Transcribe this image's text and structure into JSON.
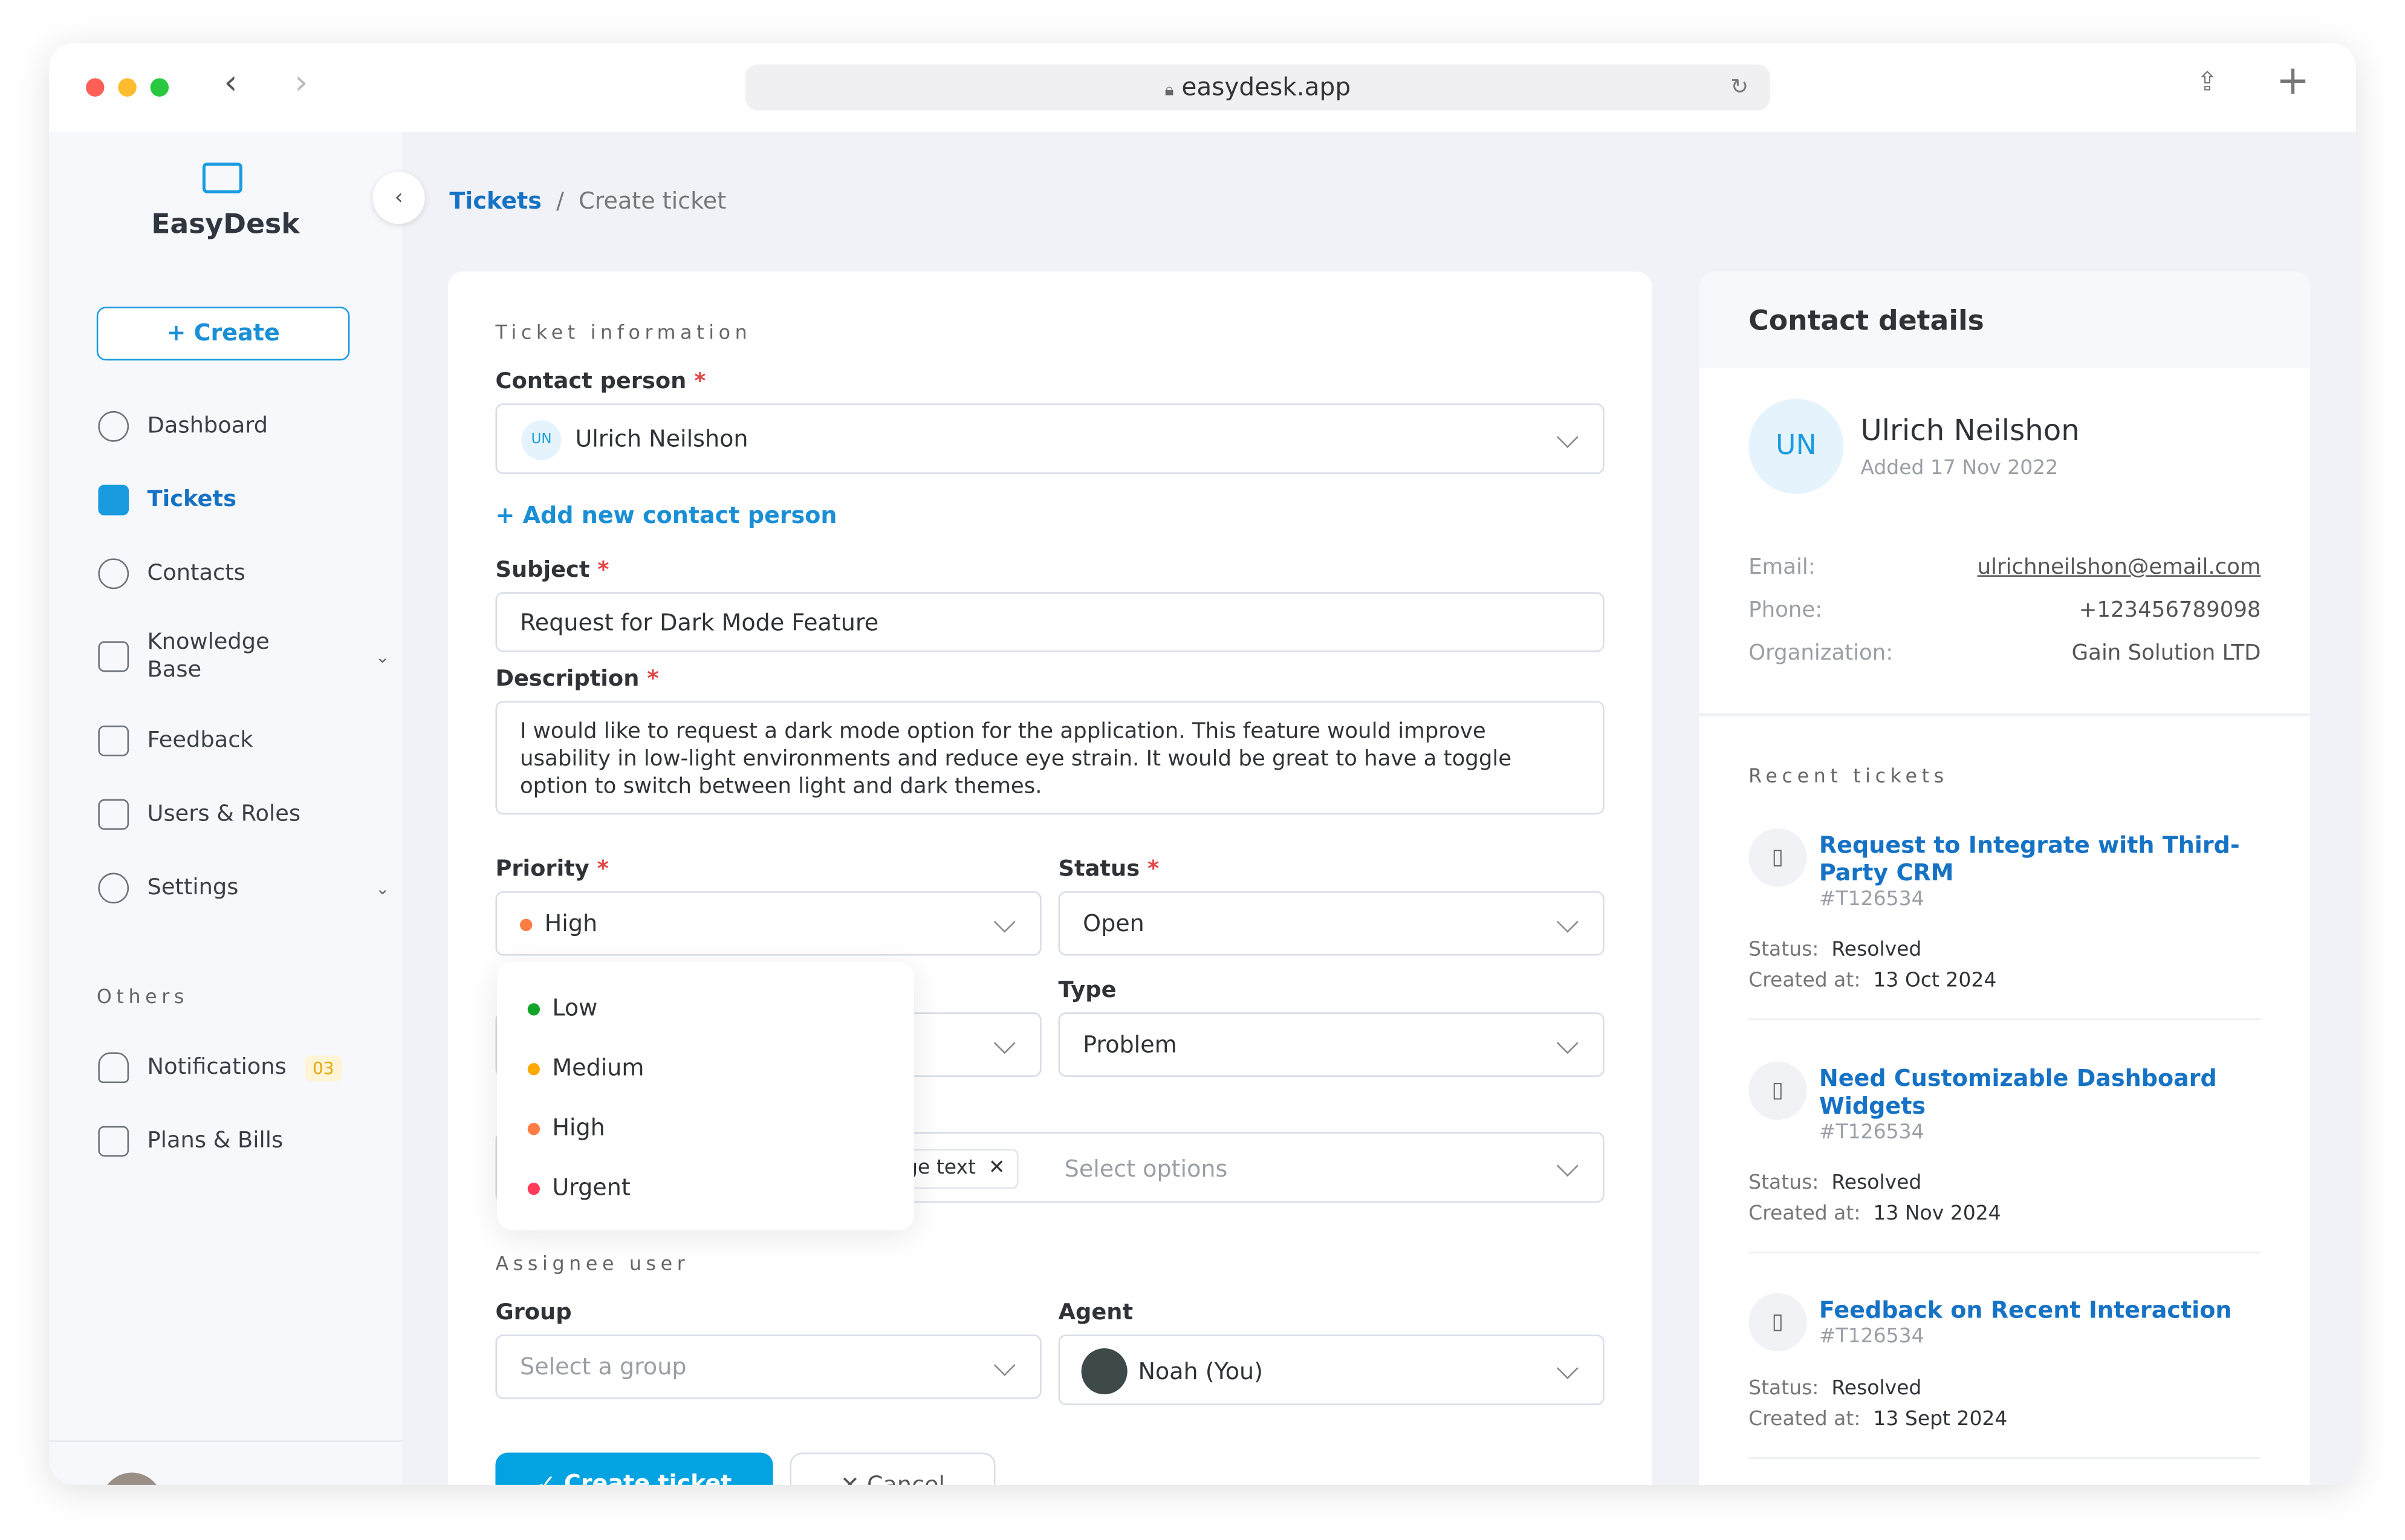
{
  "browser": {
    "url": "easydesk.app",
    "colors": {
      "close": "#ff5f57",
      "minimize": "#febc2e",
      "maximize": "#28c840"
    }
  },
  "sidebar": {
    "brand": "EasyDesk",
    "create_label": "Create",
    "items": [
      {
        "label": "Dashboard",
        "icon": "pie-chart-icon"
      },
      {
        "label": "Tickets",
        "icon": "ticket-icon",
        "active": true
      },
      {
        "label": "Contacts",
        "icon": "contacts-icon"
      },
      {
        "label": "Knowledge Base",
        "icon": "book-icon",
        "expandable": true
      },
      {
        "label": "Feedback",
        "icon": "feedback-icon"
      },
      {
        "label": "Users & Roles",
        "icon": "users-lock-icon"
      },
      {
        "label": "Settings",
        "icon": "gear-icon",
        "expandable": true
      }
    ],
    "others_heading": "Others",
    "others": [
      {
        "label": "Notifications",
        "icon": "bell-icon",
        "badge": "03"
      },
      {
        "label": "Plans & Bills",
        "icon": "wallet-icon"
      }
    ]
  },
  "breadcrumb": {
    "parent": "Tickets",
    "separator": "/",
    "current": "Create  ticket"
  },
  "form": {
    "section_ticket": "Ticket information",
    "contact_label": "Contact person",
    "contact_initials": "UN",
    "contact_value": "Ulrich Neilshon",
    "add_contact": "+ Add new contact person",
    "subject_label": "Subject",
    "subject_value": "Request for Dark Mode Feature",
    "description_label": "Description",
    "description_value": "I would like to request a dark mode option for the application. This feature would improve usability in low-light environments and reduce eye strain. It would be great to have a toggle option to switch between light and dark themes.",
    "priority_label": "Priority",
    "priority_value": "High",
    "priority_options": [
      {
        "label": "Low",
        "color": "#12a52a"
      },
      {
        "label": "Medium",
        "color": "#ffa800"
      },
      {
        "label": "High",
        "color": "#ff7d45"
      },
      {
        "label": "Urgent",
        "color": "#ff3d5a"
      }
    ],
    "status_label": "Status",
    "status_value": "Open",
    "type_label": "Type",
    "type_value": "Problem",
    "tag_chip": "rge text",
    "tags_placeholder": "Select options",
    "section_assignee": "Assignee user",
    "group_label": "Group",
    "group_placeholder": "Select a group",
    "agent_label": "Agent",
    "agent_value": "Noah (You)",
    "submit_label": "Create ticket",
    "cancel_label": "Cancel",
    "required_mark": "*"
  },
  "contact": {
    "heading": "Contact details",
    "initials": "UN",
    "name": "Ulrich Neilshon",
    "added": "Added 17 Nov 2022",
    "email_label": "Email:",
    "email": "ulrichneilshon@email.com",
    "phone_label": "Phone:",
    "phone": "+123456789098",
    "org_label": "Organization:",
    "org": "Gain Solution LTD",
    "recent_heading": "Recent tickets",
    "status_label": "Status:",
    "created_label": "Created at:",
    "tickets": [
      {
        "title": "Request to Integrate with Third-Party CRM",
        "id": "#T126534",
        "status": "Resolved",
        "created": "13 Oct 2024"
      },
      {
        "title": "Need Customizable Dashboard Widgets",
        "id": "#T126534",
        "status": "Resolved",
        "created": "13 Nov 2024"
      },
      {
        "title": "Feedback on Recent Interaction",
        "id": "#T126534",
        "status": "Resolved",
        "created": "13 Sept 2024"
      }
    ]
  }
}
